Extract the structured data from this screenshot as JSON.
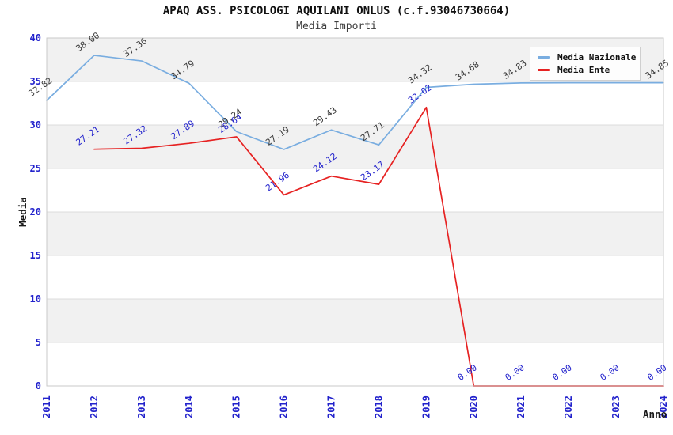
{
  "header": {
    "title": "APAQ ASS. PSICOLOGI AQUILANI ONLUS (c.f.93046730664)",
    "subtitle": "Media Importi"
  },
  "colors": {
    "axis_tick_blue": "#2222cc",
    "grid_line": "#dcdcdc",
    "band_fill": "#f1f1f1",
    "plot_border": "#c9c9c9",
    "axis_label_dark": "#1a1a1a",
    "legend_bg": "#fdfdfd",
    "legend_border": "#cfcfcf"
  },
  "legend": {
    "items": [
      {
        "label": "Media Nazionale",
        "color": "#79ade0"
      },
      {
        "label": "Media Ente",
        "color": "#e62222"
      }
    ]
  },
  "axes": {
    "ylabel": "Media",
    "xlabel": "Anno",
    "yticks": [
      0,
      5,
      10,
      15,
      20,
      25,
      30,
      35,
      40
    ]
  },
  "chart_data": {
    "type": "line",
    "title": "APAQ ASS. PSICOLOGI AQUILANI ONLUS (c.f.93046730664)",
    "subtitle": "Media Importi",
    "xlabel": "Anno",
    "ylabel": "Media",
    "x": [
      "2011",
      "2012",
      "2013",
      "2014",
      "2015",
      "2016",
      "2017",
      "2018",
      "2019",
      "2020",
      "2021",
      "2022",
      "2023",
      "2024"
    ],
    "ylim": [
      0,
      40
    ],
    "ytick_step": 5,
    "grid": true,
    "banded_background": true,
    "legend_position": "top-right",
    "label_decimals": 2,
    "label_rotation_deg": -35,
    "series": [
      {
        "name": "Media Nazionale",
        "color": "#79ade0",
        "label_color": "#3a3a3a",
        "values": [
          32.82,
          38.0,
          37.36,
          34.79,
          29.24,
          27.19,
          29.43,
          27.71,
          34.32,
          34.68,
          34.83,
          34.85,
          34.85,
          34.85
        ]
      },
      {
        "name": "Media Ente",
        "color": "#e62222",
        "label_color": "#2222cc",
        "values": [
          null,
          27.21,
          27.32,
          27.89,
          28.64,
          21.96,
          24.12,
          23.17,
          32.02,
          0.0,
          0.0,
          0.0,
          0.0,
          0.0
        ]
      }
    ]
  }
}
